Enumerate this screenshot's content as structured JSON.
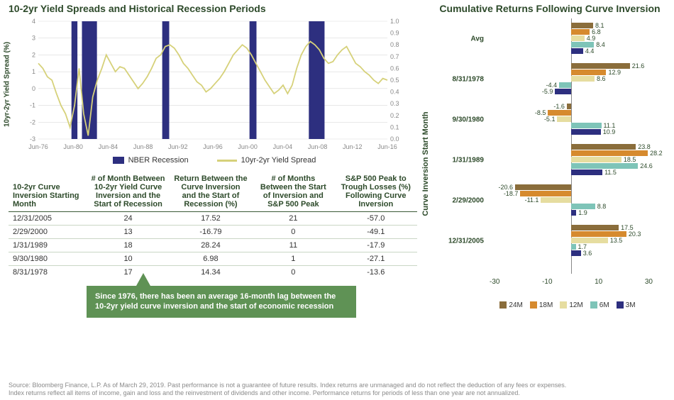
{
  "colors": {
    "title": "#2d4a2a",
    "recession_bar": "#2d2f7f",
    "spread_line": "#d6d17a",
    "grid": "#d9d9d9",
    "callout_bg": "#5f9255",
    "footer_text": "#8a8a8a",
    "bar24": "#8a6d3b",
    "bar18": "#d68a2e",
    "bar12": "#e6dda0",
    "bar6": "#7ec4b8",
    "bar3": "#2d2f7f"
  },
  "left": {
    "title": "10-2yr Yield Spreads and Historical Recession Periods",
    "y_left_label": "10yr-2yr Yield Spread (%)",
    "y_left": {
      "min": -3,
      "max": 4,
      "step": 1
    },
    "y_right": {
      "min": 0,
      "max": 1,
      "step": 0.1
    },
    "x_ticks": [
      "Jun-76",
      "Jun-80",
      "Jun-84",
      "Jun-88",
      "Jun-92",
      "Jun-96",
      "Jun-00",
      "Jun-04",
      "Jun-08",
      "Jun-12",
      "Jun-16"
    ],
    "recession_periods": [
      {
        "start": 0.095,
        "end": 0.112
      },
      {
        "start": 0.125,
        "end": 0.168
      },
      {
        "start": 0.355,
        "end": 0.375
      },
      {
        "start": 0.605,
        "end": 0.625
      },
      {
        "start": 0.775,
        "end": 0.82
      }
    ],
    "spread_series": [
      1.5,
      1.2,
      0.7,
      0.5,
      -0.3,
      -1.0,
      -1.5,
      -2.3,
      -1.0,
      1.2,
      -1.5,
      -2.8,
      -0.5,
      0.5,
      1.2,
      2.0,
      1.5,
      1.0,
      1.3,
      1.2,
      0.8,
      0.4,
      0.0,
      0.3,
      0.7,
      1.2,
      1.8,
      2.0,
      2.5,
      2.6,
      2.4,
      2.0,
      1.5,
      1.2,
      0.8,
      0.4,
      0.2,
      -0.2,
      0.0,
      0.3,
      0.6,
      1.0,
      1.5,
      2.0,
      2.3,
      2.6,
      2.4,
      2.0,
      1.5,
      1.0,
      0.5,
      0.1,
      -0.3,
      -0.1,
      0.2,
      -0.3,
      0.2,
      1.2,
      2.0,
      2.5,
      2.8,
      2.6,
      2.3,
      1.8,
      1.5,
      1.6,
      2.0,
      2.3,
      2.5,
      2.0,
      1.5,
      1.3,
      1.0,
      0.8,
      0.5,
      0.3,
      0.6,
      0.5
    ],
    "legend": {
      "recession": "NBER Recession",
      "spread": "10yr-2yr Yield Spread"
    }
  },
  "table": {
    "headers": [
      "10-2yr Curve Inversion Starting Month",
      "# of Month Between 10-2yr Yield Curve Inversion and the Start of Recession",
      "Return Between the Curve Inversion and the Start of Recession (%)",
      "# of Months Between the Start of Inversion and S&P 500 Peak",
      "S&P 500 Peak to Trough Losses (%) Following Curve Inversion"
    ],
    "rows": [
      [
        "12/31/2005",
        "24",
        "17.52",
        "21",
        "-57.0"
      ],
      [
        "2/29/2000",
        "13",
        "-16.79",
        "0",
        "-49.1"
      ],
      [
        "1/31/1989",
        "18",
        "28.24",
        "11",
        "-17.9"
      ],
      [
        "9/30/1980",
        "10",
        "6.98",
        "1",
        "-27.1"
      ],
      [
        "8/31/1978",
        "17",
        "14.34",
        "0",
        "-13.6"
      ]
    ]
  },
  "callout": "Since 1976, there has been an average 16-month lag between the 10-2yr yield curve inversion and the start of economic recession",
  "right": {
    "title": "Cumulative Returns Following Curve Inversion",
    "y_label": "Curve Inversion Start Month",
    "x_domain": {
      "min": -30,
      "max": 30,
      "ticks": [
        -30,
        -10,
        10,
        30
      ]
    },
    "series_keys": [
      "24M",
      "18M",
      "12M",
      "6M",
      "3M"
    ],
    "series_colors": [
      "#8a6d3b",
      "#d68a2e",
      "#e6dda0",
      "#7ec4b8",
      "#2d2f7f"
    ],
    "groups": [
      {
        "label": "Avg",
        "values": [
          8.1,
          6.8,
          4.9,
          8.4,
          4.4
        ]
      },
      {
        "label": "8/31/1978",
        "values": [
          21.6,
          12.9,
          8.6,
          -4.4,
          -5.9
        ]
      },
      {
        "label": "9/30/1980",
        "values": [
          -1.6,
          -8.5,
          -5.1,
          11.1,
          10.9
        ]
      },
      {
        "label": "1/31/1989",
        "values": [
          23.8,
          28.2,
          18.5,
          24.6,
          11.5
        ]
      },
      {
        "label": "2/29/2000",
        "values": [
          -20.6,
          -18.7,
          -11.1,
          8.8,
          1.9
        ]
      },
      {
        "label": "12/31/2005",
        "values": [
          17.5,
          20.3,
          13.5,
          1.7,
          3.6
        ]
      }
    ]
  },
  "footer_lines": [
    "Source: Bloomberg Finance, L.P. As of March 29, 2019. Past performance is not a guarantee of future results. Index returns are unmanaged and do not reflect the deduction of any fees or expenses.",
    "Index returns reflect all items of income, gain and loss and the reinvestment of dividends and other income. Performance returns for periods of less than one year are not annualized."
  ]
}
